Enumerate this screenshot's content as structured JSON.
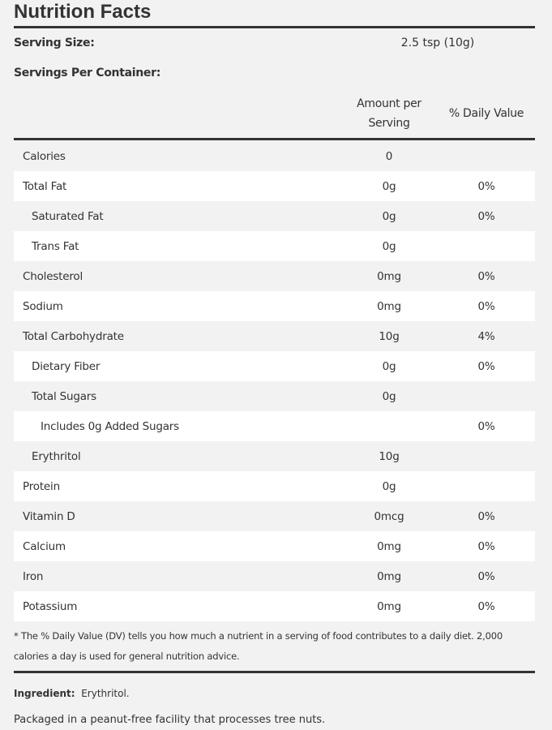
{
  "title": "Nutrition Facts",
  "serving_size": {
    "label": "Serving Size:",
    "value": "2.5 tsp (10g)"
  },
  "servings_per_container": {
    "label": "Servings Per Container:"
  },
  "headers": {
    "amount": "Amount per Serving",
    "dv": "% Daily Value"
  },
  "rows": [
    {
      "name": "Calories",
      "amount": "0",
      "dv": "",
      "indent": 0
    },
    {
      "name": "Total Fat",
      "amount": "0g",
      "dv": "0%",
      "indent": 0
    },
    {
      "name": "Saturated Fat",
      "amount": "0g",
      "dv": "0%",
      "indent": 1
    },
    {
      "name": "Trans Fat",
      "amount": "0g",
      "dv": "",
      "indent": 1
    },
    {
      "name": "Cholesterol",
      "amount": "0mg",
      "dv": "0%",
      "indent": 0
    },
    {
      "name": "Sodium",
      "amount": "0mg",
      "dv": "0%",
      "indent": 0
    },
    {
      "name": "Total Carbohydrate",
      "amount": "10g",
      "dv": "4%",
      "indent": 0
    },
    {
      "name": "Dietary Fiber",
      "amount": "0g",
      "dv": "0%",
      "indent": 1
    },
    {
      "name": "Total Sugars",
      "amount": "0g",
      "dv": "",
      "indent": 1
    },
    {
      "name": "Includes 0g Added Sugars",
      "amount": "",
      "dv": "0%",
      "indent": 2
    },
    {
      "name": "Erythritol",
      "amount": "10g",
      "dv": "",
      "indent": 1
    },
    {
      "name": "Protein",
      "amount": "0g",
      "dv": "",
      "indent": 0
    },
    {
      "name": "Vitamin D",
      "amount": "0mcg",
      "dv": "0%",
      "indent": 0
    },
    {
      "name": "Calcium",
      "amount": "0mg",
      "dv": "0%",
      "indent": 0
    },
    {
      "name": "Iron",
      "amount": "0mg",
      "dv": "0%",
      "indent": 0
    },
    {
      "name": "Potassium",
      "amount": "0mg",
      "dv": "0%",
      "indent": 0
    }
  ],
  "footnote": "* The % Daily Value (DV) tells you how much a nutrient in a serving of food contributes to a daily diet. 2,000 calories a day is used for general nutrition advice.",
  "ingredient": {
    "label": "Ingredient:",
    "value": "Erythritol."
  },
  "packaging": "Packaged in a peanut-free facility that processes tree nuts."
}
